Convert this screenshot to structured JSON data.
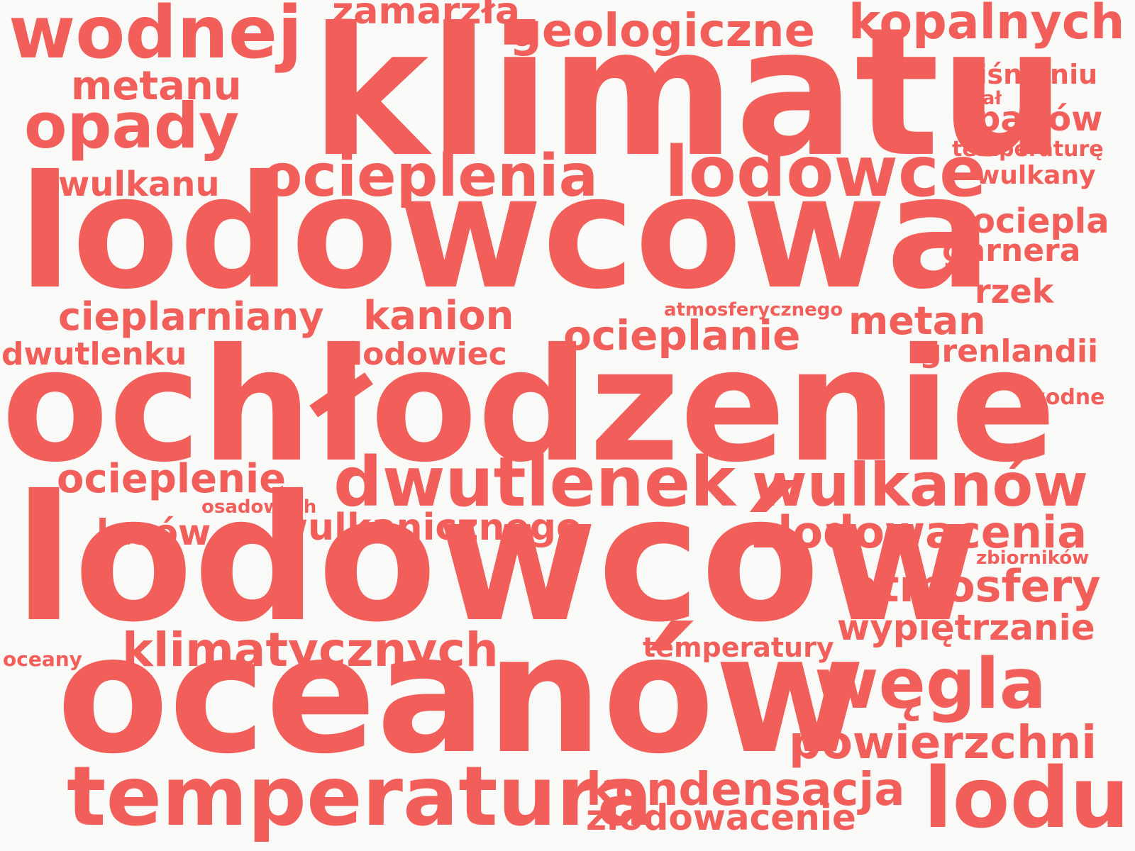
{
  "word_color": "#f25f5a",
  "background_color": "#f9f9f7",
  "words": [
    "wodnej",
    "zamarzła",
    "geologiczne",
    "kopalnych",
    "klimatu",
    "metanu",
    "ciśnieniu",
    "skał",
    "opady",
    "opadów",
    "temperaturę",
    "ocieplenia",
    "lodowce",
    "wulkany",
    "wulkanu",
    "lodowcowa",
    "ociepla",
    "garnera",
    "rzek",
    "atmosferycznego",
    "cieplarniany",
    "kanion",
    "metan",
    "ocieplanie",
    "grenlandii",
    "dwutlenku",
    "lodowiec",
    "ochłodzenie",
    "wodne",
    "ocieplenie",
    "dwutlenek",
    "wulkanów",
    "osadowych",
    "lasów",
    "wulkanicznego",
    "zlodowacenia",
    "zbiorników",
    "lodowców",
    "atmosfery",
    "wypiętrzanie",
    "klimatycznych",
    "temperatury",
    "oceany",
    "węgla",
    "oceanów",
    "powierzchni",
    "temperatura",
    "kondensacja",
    "lodu",
    "zlodowacenie"
  ]
}
